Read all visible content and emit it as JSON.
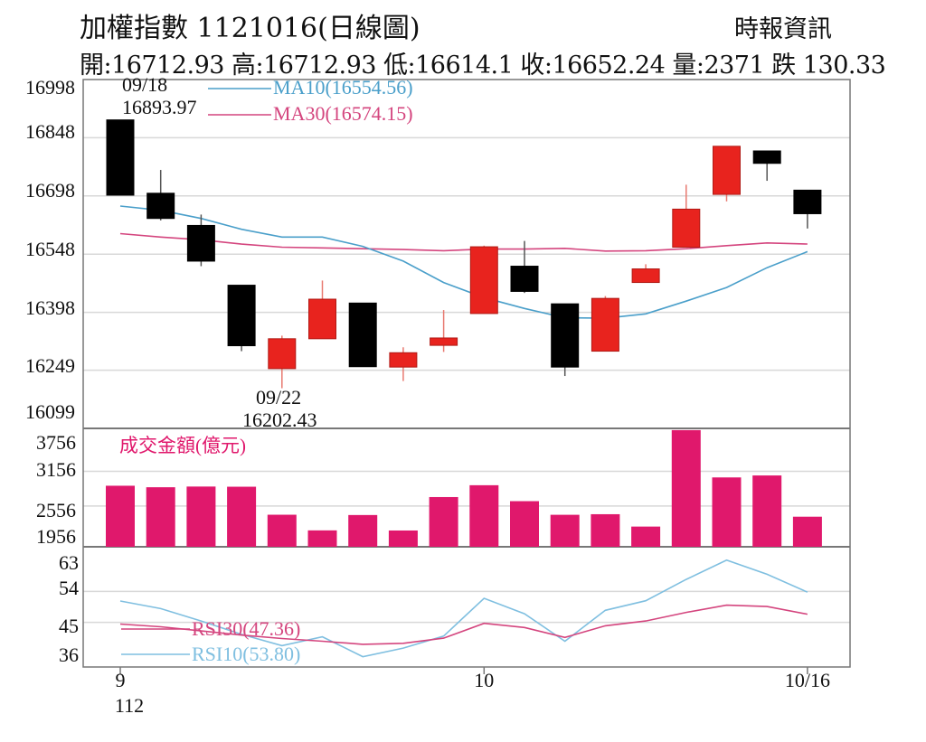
{
  "header": {
    "title": "加權指數 1121016(日線圖)",
    "source": "時報資訊",
    "ohlc": "開:16712.93 高:16712.93 低:16614.1 收:16652.24 量:2371 跌 130.33"
  },
  "colors": {
    "up": "#e8231e",
    "down": "#000000",
    "volume": "#e0186c",
    "ma10": "#4a9fca",
    "ma30": "#d4457e",
    "rsi10": "#7fbfe0",
    "rsi30": "#d4457e",
    "grid": "#d8d8d8",
    "axis": "#777777"
  },
  "chart_data": [
    {
      "type": "candlestick",
      "title": "加權指數 1121016(日線圖)",
      "ylim": [
        16099,
        16998
      ],
      "yticks": [
        "16998",
        "16848",
        "16698",
        "16548",
        "16398",
        "16249",
        "16099"
      ],
      "xticks": [
        {
          "index": 0,
          "label": "9",
          "sublabel": "112"
        },
        {
          "index": 9,
          "label": "10",
          "sublabel": ""
        },
        {
          "index": 17,
          "label": "10/16",
          "sublabel": ""
        }
      ],
      "legend": [
        {
          "label": "MA10(16554.56)",
          "color": "#4a9fca"
        },
        {
          "label": "MA30(16574.15)",
          "color": "#d4457e"
        }
      ],
      "annotations": [
        {
          "index": 0,
          "position": "above",
          "lines": [
            "09/18",
            "16893.97"
          ]
        },
        {
          "index": 4,
          "position": "below",
          "lines": [
            "09/22",
            "16202.43"
          ]
        }
      ],
      "candles": [
        {
          "o": 16893.97,
          "h": 16893.97,
          "l": 16700,
          "c": 16700
        },
        {
          "o": 16705,
          "h": 16765,
          "l": 16635,
          "c": 16640
        },
        {
          "o": 16622,
          "h": 16650,
          "l": 16517,
          "c": 16530
        },
        {
          "o": 16468,
          "h": 16468,
          "l": 16298,
          "c": 16312
        },
        {
          "o": 16253,
          "h": 16338,
          "l": 16202.43,
          "c": 16330
        },
        {
          "o": 16330,
          "h": 16480,
          "l": 16330,
          "c": 16432
        },
        {
          "o": 16422,
          "h": 16422,
          "l": 16258,
          "c": 16258
        },
        {
          "o": 16257,
          "h": 16308,
          "l": 16221,
          "c": 16294
        },
        {
          "o": 16313,
          "h": 16404,
          "l": 16296,
          "c": 16332
        },
        {
          "o": 16395,
          "h": 16570,
          "l": 16395,
          "c": 16567
        },
        {
          "o": 16517,
          "h": 16582,
          "l": 16448,
          "c": 16452
        },
        {
          "o": 16420,
          "h": 16420,
          "l": 16234,
          "c": 16257
        },
        {
          "o": 16298,
          "h": 16440,
          "l": 16298,
          "c": 16434
        },
        {
          "o": 16475,
          "h": 16522,
          "l": 16475,
          "c": 16510
        },
        {
          "o": 16566,
          "h": 16727,
          "l": 16566,
          "c": 16664
        },
        {
          "o": 16702,
          "h": 16826,
          "l": 16684,
          "c": 16826
        },
        {
          "o": 16814,
          "h": 16814,
          "l": 16737,
          "c": 16782
        },
        {
          "o": 16712.93,
          "h": 16712.93,
          "l": 16614.1,
          "c": 16652.24
        }
      ],
      "ma10": [
        16672,
        16661,
        16640,
        16612,
        16592,
        16592,
        16568,
        16530,
        16475,
        16436,
        16408,
        16384,
        16383,
        16394,
        16427,
        16462,
        16513,
        16554.56
      ],
      "ma30": [
        16601,
        16592,
        16585,
        16574,
        16566,
        16564,
        16562,
        16560,
        16557,
        16561,
        16561,
        16563,
        16556,
        16557,
        16562,
        16570,
        16577,
        16574.15
      ]
    },
    {
      "type": "bar",
      "title": "成交金額(億元)",
      "ylim": [
        1850,
        3900
      ],
      "yticks": [
        "3756",
        "3156",
        "2556",
        "1956"
      ],
      "values": [
        2907,
        2881,
        2893,
        2890,
        2405,
        2134,
        2400,
        2132,
        2711,
        2916,
        2640,
        2404,
        2414,
        2200,
        3870,
        3051,
        3085,
        2371
      ]
    },
    {
      "type": "line",
      "ylim": [
        32,
        67
      ],
      "yticks": [
        "63",
        "54",
        "45",
        "36"
      ],
      "legend": [
        {
          "label": "RSI30(47.36)",
          "color": "#d4457e"
        },
        {
          "label": "RSI10(53.80)",
          "color": "#7fbfe0"
        }
      ],
      "series": [
        {
          "name": "RSI30(47.36)",
          "values": [
            44.5,
            43.7,
            42.5,
            41.3,
            40.3,
            39.5,
            38.6,
            38.9,
            40.4,
            44.7,
            43.5,
            40.6,
            44.0,
            45.4,
            47.9,
            50.0,
            49.6,
            47.36
          ]
        },
        {
          "name": "RSI10(53.80)",
          "values": [
            51.2,
            49.0,
            45.4,
            41.5,
            38.2,
            40.8,
            35.0,
            37.5,
            41.0,
            52.0,
            47.5,
            39.5,
            48.5,
            51.3,
            57.5,
            63.1,
            59.0,
            53.8
          ]
        }
      ]
    }
  ]
}
